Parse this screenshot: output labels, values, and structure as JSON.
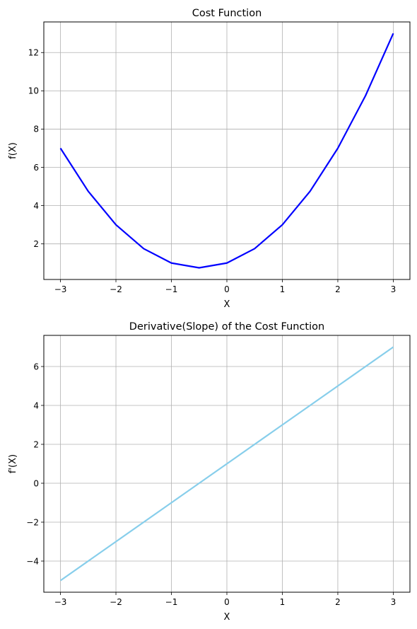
{
  "chart_data": [
    {
      "type": "line",
      "title": "Cost Function",
      "xlabel": "X",
      "ylabel": "f(X)",
      "xlim": [
        -3.3,
        3.3
      ],
      "ylim": [
        0.14,
        13.6
      ],
      "xticks": [
        -3,
        -2,
        -1,
        0,
        1,
        2,
        3
      ],
      "xtick_labels": [
        "−3",
        "−2",
        "−1",
        "0",
        "1",
        "2",
        "3"
      ],
      "yticks": [
        2,
        4,
        6,
        8,
        10,
        12
      ],
      "ytick_labels": [
        "2",
        "4",
        "6",
        "8",
        "10",
        "12"
      ],
      "grid": true,
      "series": [
        {
          "color": "#0000ff",
          "x": [
            -3.0,
            -2.5,
            -2.0,
            -1.5,
            -1.0,
            -0.5,
            0.0,
            0.5,
            1.0,
            1.5,
            2.0,
            2.5,
            3.0
          ],
          "y": [
            7.0,
            4.75,
            3.0,
            1.75,
            1.0,
            0.75,
            1.0,
            1.75,
            3.0,
            4.75,
            7.0,
            9.75,
            13.0
          ]
        }
      ]
    },
    {
      "type": "line",
      "title": "Derivative(Slope) of the Cost Function",
      "xlabel": "X",
      "ylabel": "f'(X)",
      "xlim": [
        -3.3,
        3.3
      ],
      "ylim": [
        -5.6,
        7.6
      ],
      "xticks": [
        -3,
        -2,
        -1,
        0,
        1,
        2,
        3
      ],
      "xtick_labels": [
        "−3",
        "−2",
        "−1",
        "0",
        "1",
        "2",
        "3"
      ],
      "yticks": [
        -4,
        -2,
        0,
        2,
        4,
        6
      ],
      "ytick_labels": [
        "−4",
        "−2",
        "0",
        "2",
        "4",
        "6"
      ],
      "grid": true,
      "series": [
        {
          "color": "#87ceeb",
          "x": [
            -3.0,
            -2.0,
            -1.0,
            0.0,
            1.0,
            2.0,
            3.0
          ],
          "y": [
            -5.0,
            -3.0,
            -1.0,
            1.0,
            3.0,
            5.0,
            7.0
          ]
        }
      ]
    }
  ]
}
